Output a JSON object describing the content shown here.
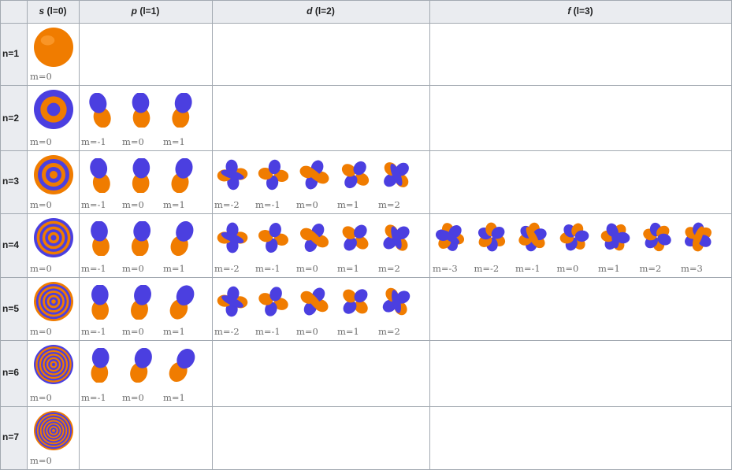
{
  "table": {
    "headers": [
      {
        "letter": "s",
        "rest": " (l=0)"
      },
      {
        "letter": "p",
        "rest": " (l=1)"
      },
      {
        "letter": "d",
        "rest": " (l=2)"
      },
      {
        "letter": "f",
        "rest": " (l=3)"
      }
    ],
    "rows": [
      "n=1",
      "n=2",
      "n=3",
      "n=4",
      "n=5",
      "n=6",
      "n=7"
    ],
    "m_labels": {
      "s": [
        "m=0"
      ],
      "p": [
        "m=-1",
        "m=0",
        "m=1"
      ],
      "d": [
        "m=-2",
        "m=-1",
        "m=0",
        "m=1",
        "m=2"
      ],
      "f": [
        "m=-3",
        "m=-2",
        "m=-1",
        "m=0",
        "m=1",
        "m=2",
        "m=3"
      ]
    },
    "orbitals_present": {
      "s": [
        1,
        2,
        3,
        4,
        5,
        6,
        7
      ],
      "p": [
        2,
        3,
        4,
        5,
        6
      ],
      "d": [
        3,
        4,
        5
      ],
      "f": [
        4
      ]
    }
  },
  "colors": {
    "orange": "#f07c00",
    "blue": "#4b3fe0",
    "header_bg": "#eaecf0",
    "border": "#a2a9b1"
  }
}
